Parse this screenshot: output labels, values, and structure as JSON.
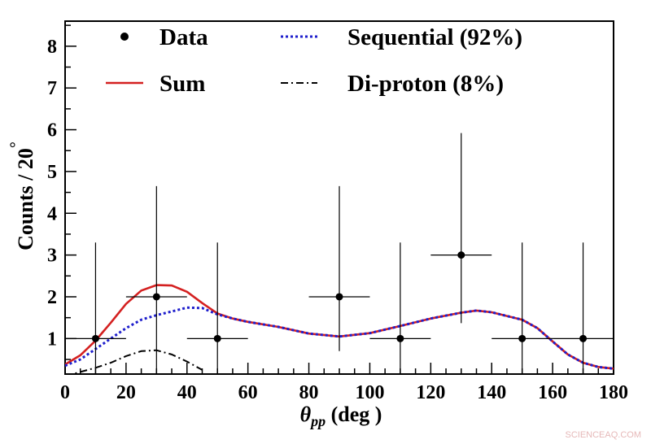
{
  "chart_data": {
    "type": "line",
    "x_axis": {
      "label_symbol": "θ",
      "label_subscript": "pp",
      "label_unit": " (deg )",
      "range": [
        0,
        180
      ],
      "ticks": [
        0,
        20,
        40,
        60,
        80,
        100,
        120,
        140,
        160,
        180
      ]
    },
    "y_axis": {
      "label": "Counts /  20",
      "label_superscript": "°",
      "range": [
        0.15,
        8.6
      ],
      "ticks": [
        1,
        2,
        3,
        4,
        5,
        6,
        7,
        8
      ]
    },
    "grid": false,
    "legend_placement": "top",
    "series": [
      {
        "name": "Data",
        "kind": "points",
        "color": "#000000",
        "points": [
          {
            "x": 10,
            "y": 1,
            "xerr": 10,
            "yerr_low": 1,
            "yerr_high": 2.3
          },
          {
            "x": 30,
            "y": 2,
            "xerr": 10,
            "yerr_low": 2,
            "yerr_high": 2.65
          },
          {
            "x": 50,
            "y": 1,
            "xerr": 10,
            "yerr_low": 1,
            "yerr_high": 2.3
          },
          {
            "x": 90,
            "y": 2,
            "xerr": 10,
            "yerr_low": 1.3,
            "yerr_high": 2.65
          },
          {
            "x": 110,
            "y": 1,
            "xerr": 10,
            "yerr_low": 1,
            "yerr_high": 2.3
          },
          {
            "x": 130,
            "y": 3,
            "xerr": 10,
            "yerr_low": 1.63,
            "yerr_high": 2.92
          },
          {
            "x": 150,
            "y": 1,
            "xerr": 10,
            "yerr_low": 1,
            "yerr_high": 2.3
          },
          {
            "x": 170,
            "y": 1,
            "xerr": 10,
            "yerr_low": 1,
            "yerr_high": 2.3
          }
        ]
      },
      {
        "name": "Sequential (92%)",
        "kind": "dotted",
        "color": "#1f1fcc",
        "x": [
          0,
          5,
          10,
          15,
          20,
          25,
          30,
          35,
          40,
          45,
          50,
          55,
          60,
          70,
          80,
          90,
          100,
          110,
          120,
          130,
          135,
          140,
          150,
          155,
          160,
          165,
          170,
          175,
          180
        ],
        "y": [
          0.35,
          0.5,
          0.75,
          1.0,
          1.25,
          1.45,
          1.56,
          1.65,
          1.74,
          1.73,
          1.58,
          1.48,
          1.4,
          1.28,
          1.12,
          1.05,
          1.13,
          1.3,
          1.48,
          1.62,
          1.67,
          1.63,
          1.45,
          1.25,
          0.93,
          0.62,
          0.42,
          0.32,
          0.28
        ]
      },
      {
        "name": "Sum",
        "kind": "solid",
        "color": "#d42020",
        "x": [
          0,
          5,
          10,
          15,
          20,
          25,
          30,
          35,
          40,
          45,
          50,
          55,
          60,
          70,
          80,
          90,
          100,
          110,
          120,
          130,
          135,
          140,
          150,
          155,
          160,
          165,
          170,
          175,
          180
        ],
        "y": [
          0.38,
          0.6,
          0.95,
          1.38,
          1.83,
          2.15,
          2.28,
          2.27,
          2.12,
          1.85,
          1.6,
          1.48,
          1.4,
          1.28,
          1.12,
          1.05,
          1.13,
          1.3,
          1.48,
          1.62,
          1.67,
          1.63,
          1.45,
          1.25,
          0.93,
          0.62,
          0.42,
          0.32,
          0.28
        ]
      },
      {
        "name": "Di-proton (8%)",
        "kind": "dashdot",
        "color": "#000000",
        "x": [
          0,
          5,
          10,
          15,
          20,
          25,
          30,
          35,
          40,
          45
        ],
        "y": [
          0.1,
          0.2,
          0.3,
          0.42,
          0.58,
          0.7,
          0.72,
          0.62,
          0.45,
          0.25
        ]
      }
    ]
  },
  "watermark": "SCIENCEAQ.COM"
}
